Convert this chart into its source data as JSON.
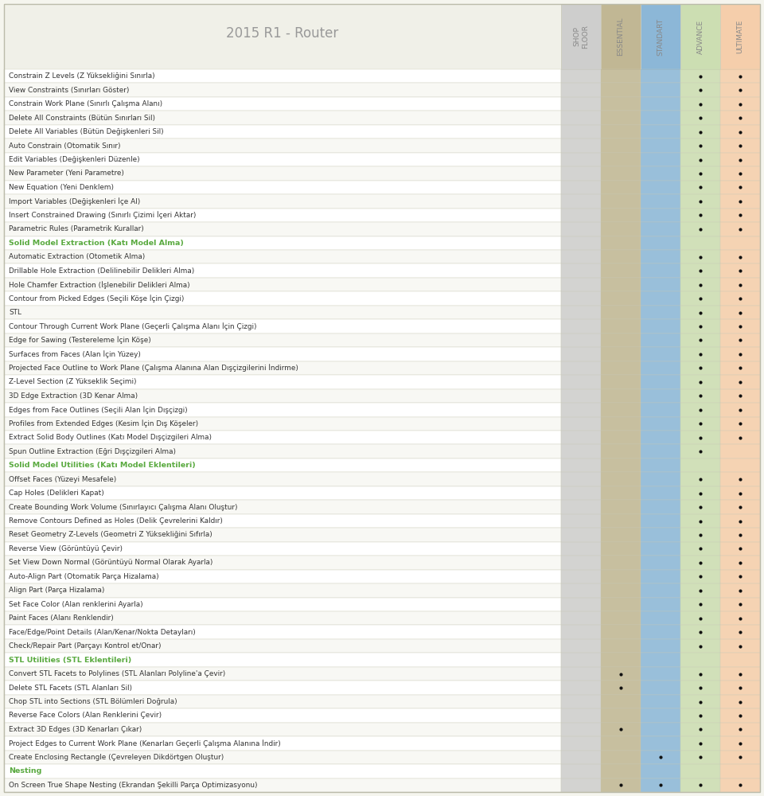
{
  "title": "2015 R1 - Router",
  "col_headers": [
    "SHOP\nFLOOR",
    "ESSENTIAL",
    "STANDART",
    "ADVANCE",
    "ULTIMATE"
  ],
  "col_colors": [
    "#c8c8c8",
    "#b8ad85",
    "#7aadd4",
    "#c5daa8",
    "#f5c8a0"
  ],
  "col_header_colors": [
    "#c0c0c0",
    "#b8ad85",
    "#7aadd4",
    "#c5daa8",
    "#f5c8a0"
  ],
  "section_green": "#5aaa40",
  "fig_bg": "#f5f5ee",
  "row_bg": "#ffffff",
  "border_color": "#ccccbb",
  "text_color": "#333333",
  "header_text_color": "#888888",
  "title_color": "#999999",
  "rows": [
    {
      "label": "Constrain Z Levels (Z Yüksekliğini Sınırla)",
      "dots": [
        0,
        0,
        0,
        1,
        1
      ],
      "type": "normal"
    },
    {
      "label": "View Constraints (Sınırları Göster)",
      "dots": [
        0,
        0,
        0,
        1,
        1
      ],
      "type": "normal"
    },
    {
      "label": "Constrain Work Plane (Sınırlı Çalışma Alanı)",
      "dots": [
        0,
        0,
        0,
        1,
        1
      ],
      "type": "normal"
    },
    {
      "label": "Delete All Constraints (Bütün Sınırları Sil)",
      "dots": [
        0,
        0,
        0,
        1,
        1
      ],
      "type": "normal"
    },
    {
      "label": "Delete All Variables (Bütün Değişkenleri Sil)",
      "dots": [
        0,
        0,
        0,
        1,
        1
      ],
      "type": "normal"
    },
    {
      "label": "Auto Constrain (Otomatik Sınır)",
      "dots": [
        0,
        0,
        0,
        1,
        1
      ],
      "type": "normal"
    },
    {
      "label": "Edit Variables (Değişkenleri Düzenle)",
      "dots": [
        0,
        0,
        0,
        1,
        1
      ],
      "type": "normal"
    },
    {
      "label": "New Parameter (Yeni Parametre)",
      "dots": [
        0,
        0,
        0,
        1,
        1
      ],
      "type": "normal"
    },
    {
      "label": "New Equation (Yeni Denklem)",
      "dots": [
        0,
        0,
        0,
        1,
        1
      ],
      "type": "normal"
    },
    {
      "label": "Import Variables (Değişkenleri İçe Al)",
      "dots": [
        0,
        0,
        0,
        1,
        1
      ],
      "type": "normal"
    },
    {
      "label": "Insert Constrained Drawing (Sınırlı Çizimi İçeri Aktar)",
      "dots": [
        0,
        0,
        0,
        1,
        1
      ],
      "type": "normal"
    },
    {
      "label": "Parametric Rules (Parametrik Kurallar)",
      "dots": [
        0,
        0,
        0,
        1,
        1
      ],
      "type": "normal"
    },
    {
      "label": "Solid Model Extraction (Katı Model Alma)",
      "dots": [
        0,
        0,
        0,
        0,
        0
      ],
      "type": "section_green"
    },
    {
      "label": "Automatic Extraction (Otometik Alma)",
      "dots": [
        0,
        0,
        0,
        1,
        1
      ],
      "type": "normal"
    },
    {
      "label": "Drillable Hole Extraction (Delilinebilir Delikleri Alma)",
      "dots": [
        0,
        0,
        0,
        1,
        1
      ],
      "type": "normal"
    },
    {
      "label": "Hole Chamfer Extraction (İşlenebilir Delikleri Alma)",
      "dots": [
        0,
        0,
        0,
        1,
        1
      ],
      "type": "normal"
    },
    {
      "label": "Contour from Picked Edges (Seçili Köşe İçin Çizgi)",
      "dots": [
        0,
        0,
        0,
        1,
        1
      ],
      "type": "normal"
    },
    {
      "label": "STL",
      "dots": [
        0,
        0,
        0,
        1,
        1
      ],
      "type": "normal"
    },
    {
      "label": "Contour Through Current Work Plane (Geçerli Çalışma Alanı İçin Çizgi)",
      "dots": [
        0,
        0,
        0,
        1,
        1
      ],
      "type": "normal"
    },
    {
      "label": "Edge for Sawing (Testereleme İçin Köşe)",
      "dots": [
        0,
        0,
        0,
        1,
        1
      ],
      "type": "normal"
    },
    {
      "label": "Surfaces from Faces (Alan İçin Yüzey)",
      "dots": [
        0,
        0,
        0,
        1,
        1
      ],
      "type": "normal"
    },
    {
      "label": "Projected Face Outline to Work Plane (Çalışma Alanına Alan Dışçizgilerini İndirme)",
      "dots": [
        0,
        0,
        0,
        1,
        1
      ],
      "type": "normal"
    },
    {
      "label": "Z-Level Section (Z Yükseklik Seçimi)",
      "dots": [
        0,
        0,
        0,
        1,
        1
      ],
      "type": "normal"
    },
    {
      "label": "3D Edge Extraction (3D Kenar Alma)",
      "dots": [
        0,
        0,
        0,
        1,
        1
      ],
      "type": "normal"
    },
    {
      "label": "Edges from Face Outlines (Seçili Alan İçin Dışçizgi)",
      "dots": [
        0,
        0,
        0,
        1,
        1
      ],
      "type": "normal"
    },
    {
      "label": "Profiles from Extended Edges (Kesim İçin Dış Köşeler)",
      "dots": [
        0,
        0,
        0,
        1,
        1
      ],
      "type": "normal"
    },
    {
      "label": "Extract Solid Body Outlines (Katı Model Dışçizgileri Alma)",
      "dots": [
        0,
        0,
        0,
        1,
        1
      ],
      "type": "normal"
    },
    {
      "label": "Spun Outline Extraction (Eğri Dışçizgileri Alma)",
      "dots": [
        0,
        0,
        0,
        1,
        0
      ],
      "type": "normal"
    },
    {
      "label": "Solid Model Utilities (Katı Model Eklentileri)",
      "dots": [
        0,
        0,
        0,
        0,
        0
      ],
      "type": "section_green"
    },
    {
      "label": "Offset Faces (Yüzeyi Mesafele)",
      "dots": [
        0,
        0,
        0,
        1,
        1
      ],
      "type": "normal"
    },
    {
      "label": "Cap Holes (Delikleri Kapat)",
      "dots": [
        0,
        0,
        0,
        1,
        1
      ],
      "type": "normal"
    },
    {
      "label": "Create Bounding Work Volume (Sınırlayıcı Çalışma Alanı Oluştur)",
      "dots": [
        0,
        0,
        0,
        1,
        1
      ],
      "type": "normal"
    },
    {
      "label": "Remove Contours Defined as Holes (Delik Çevrelerini Kaldır)",
      "dots": [
        0,
        0,
        0,
        1,
        1
      ],
      "type": "normal"
    },
    {
      "label": "Reset Geometry Z-Levels (Geometri Z Yüksekliğini Sıfırla)",
      "dots": [
        0,
        0,
        0,
        1,
        1
      ],
      "type": "normal"
    },
    {
      "label": "Reverse View (Görüntüyü Çevir)",
      "dots": [
        0,
        0,
        0,
        1,
        1
      ],
      "type": "normal"
    },
    {
      "label": "Set View Down Normal (Görüntüyü Normal Olarak Ayarla)",
      "dots": [
        0,
        0,
        0,
        1,
        1
      ],
      "type": "normal"
    },
    {
      "label": "Auto-Align Part (Otomatik Parça Hizalama)",
      "dots": [
        0,
        0,
        0,
        1,
        1
      ],
      "type": "normal"
    },
    {
      "label": "Align Part (Parça Hizalama)",
      "dots": [
        0,
        0,
        0,
        1,
        1
      ],
      "type": "normal"
    },
    {
      "label": "Set Face Color (Alan renklerini Ayarla)",
      "dots": [
        0,
        0,
        0,
        1,
        1
      ],
      "type": "normal"
    },
    {
      "label": "Paint Faces (Alanı Renklendir)",
      "dots": [
        0,
        0,
        0,
        1,
        1
      ],
      "type": "normal"
    },
    {
      "label": "Face/Edge/Point Details (Alan/Kenar/Nokta Detayları)",
      "dots": [
        0,
        0,
        0,
        1,
        1
      ],
      "type": "normal"
    },
    {
      "label": "Check/Repair Part (Parçayı Kontrol et/Onar)",
      "dots": [
        0,
        0,
        0,
        1,
        1
      ],
      "type": "normal"
    },
    {
      "label": "STL Utilities (STL Eklentileri)",
      "dots": [
        0,
        0,
        0,
        0,
        0
      ],
      "type": "section_green"
    },
    {
      "label": "Convert STL Facets to Polylines (STL Alanları Polyline'a Çevir)",
      "dots": [
        0,
        1,
        0,
        1,
        1
      ],
      "type": "normal"
    },
    {
      "label": "Delete STL Facets (STL Alanları Sil)",
      "dots": [
        0,
        1,
        0,
        1,
        1
      ],
      "type": "normal"
    },
    {
      "label": "Chop STL into Sections (STL Bölümleri Doğrula)",
      "dots": [
        0,
        0,
        0,
        1,
        1
      ],
      "type": "normal"
    },
    {
      "label": "Reverse Face Colors (Alan Renklerini Çevir)",
      "dots": [
        0,
        0,
        0,
        1,
        1
      ],
      "type": "normal"
    },
    {
      "label": "Extract 3D Edges (3D Kenarları Çıkar)",
      "dots": [
        0,
        1,
        0,
        1,
        1
      ],
      "type": "normal"
    },
    {
      "label": "Project Edges to Current Work Plane (Kenarları Geçerli Çalışma Alanına İndir)",
      "dots": [
        0,
        0,
        0,
        1,
        1
      ],
      "type": "normal"
    },
    {
      "label": "Create Enclosing Rectangle (Çevreleyen Dikdörtgen Oluştur)",
      "dots": [
        0,
        0,
        1,
        1,
        1
      ],
      "type": "normal"
    },
    {
      "label": "Nesting",
      "dots": [
        0,
        0,
        0,
        0,
        0
      ],
      "type": "section_green"
    },
    {
      "label": "On Screen True Shape Nesting (Ekrandan Şekilli Parça Optimizasyonu)",
      "dots": [
        0,
        1,
        1,
        1,
        1
      ],
      "type": "normal"
    }
  ]
}
